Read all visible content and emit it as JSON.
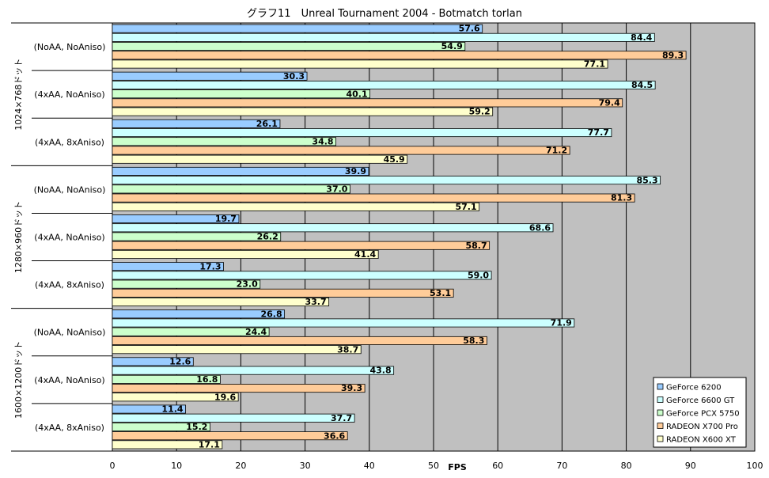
{
  "chart_data": {
    "type": "bar",
    "orientation": "horizontal",
    "title": "グラフ11　Unreal Tournament 2004 - Botmatch torlan",
    "xlabel": "FPS",
    "xlim": [
      0,
      100
    ],
    "xticks": [
      0,
      10,
      20,
      30,
      40,
      50,
      60,
      70,
      80,
      90,
      100
    ],
    "grid": true,
    "legend_position": "bottom-right",
    "groups": [
      {
        "label": "1024×768ドット",
        "subgroups": [
          {
            "label": "(NoAA, NoAniso)",
            "values": [
              57.6,
              84.4,
              54.9,
              89.3,
              77.1
            ]
          },
          {
            "label": "(4xAA, NoAniso)",
            "values": [
              30.3,
              84.5,
              40.1,
              79.4,
              59.2
            ]
          },
          {
            "label": "(4xAA, 8xAniso)",
            "values": [
              26.1,
              77.7,
              34.8,
              71.2,
              45.9
            ]
          }
        ]
      },
      {
        "label": "1280×960ドット",
        "subgroups": [
          {
            "label": "(NoAA, NoAniso)",
            "values": [
              39.9,
              85.3,
              37.0,
              81.3,
              57.1
            ]
          },
          {
            "label": "(4xAA, NoAniso)",
            "values": [
              19.7,
              68.6,
              26.2,
              58.7,
              41.4
            ]
          },
          {
            "label": "(4xAA, 8xAniso)",
            "values": [
              17.3,
              59.0,
              23.0,
              53.1,
              33.7
            ]
          }
        ]
      },
      {
        "label": "1600×1200ドット",
        "subgroups": [
          {
            "label": "(NoAA, NoAniso)",
            "values": [
              26.8,
              71.9,
              24.4,
              58.3,
              38.7
            ]
          },
          {
            "label": "(4xAA, NoAniso)",
            "values": [
              12.6,
              43.8,
              16.8,
              39.3,
              19.6
            ]
          },
          {
            "label": "(4xAA, 8xAniso)",
            "values": [
              11.4,
              37.7,
              15.2,
              36.6,
              17.1
            ]
          }
        ]
      }
    ],
    "series": [
      {
        "name": "GeForce 6200",
        "color": "#99ccff"
      },
      {
        "name": "GeForce 6600 GT",
        "color": "#ccffff"
      },
      {
        "name": "GeForce PCX 5750",
        "color": "#ccffcc"
      },
      {
        "name": "RADEON X700 Pro",
        "color": "#ffcc99"
      },
      {
        "name": "RADEON X600 XT",
        "color": "#ffffcc"
      }
    ],
    "plot_background": "#c0c0c0"
  }
}
